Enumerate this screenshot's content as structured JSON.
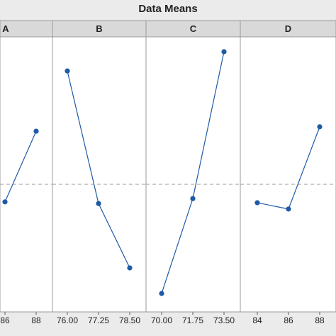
{
  "chart_data": {
    "type": "line",
    "title": "Data Means",
    "color": "#1f5aa6",
    "ylim": [
      0,
      100
    ],
    "reference_line": 46.4,
    "panels": [
      {
        "name": "A",
        "categories": [
          "86",
          "88"
        ],
        "values": [
          40,
          65.7
        ]
      },
      {
        "name": "B",
        "categories": [
          "76.00",
          "77.25",
          "78.50"
        ],
        "values": [
          87.6,
          39.4,
          16
        ]
      },
      {
        "name": "C",
        "categories": [
          "70.00",
          "71.75",
          "73.50"
        ],
        "values": [
          6.7,
          41.2,
          94.6
        ]
      },
      {
        "name": "D",
        "categories": [
          "84",
          "86",
          "88"
        ],
        "values": [
          39.7,
          37.4,
          67.3
        ]
      }
    ]
  }
}
